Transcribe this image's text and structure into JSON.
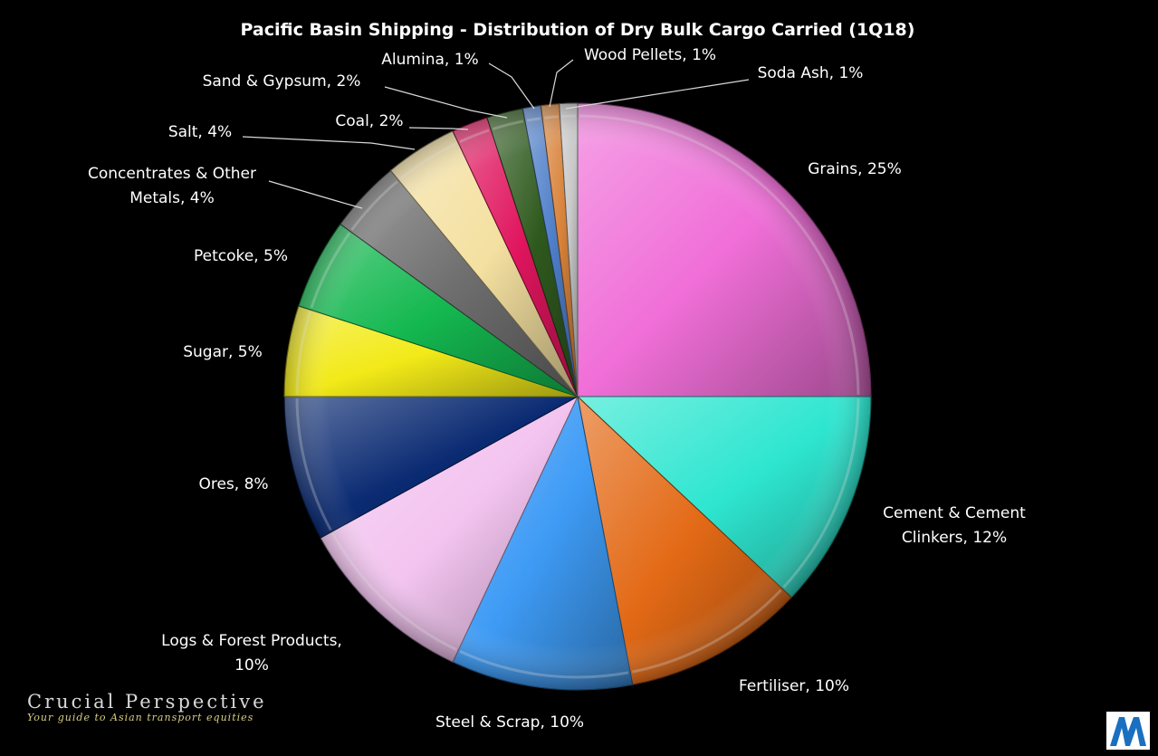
{
  "chart_data": {
    "type": "pie",
    "title": "Pacific Basin Shipping - Distribution of Dry Bulk Cargo Carried (1Q18)",
    "slices": [
      {
        "label": "Grains, 25%",
        "value": 25,
        "color": "#f06fd8"
      },
      {
        "label": "Cement & Cement Clinkers, 12%",
        "value": 12,
        "color": "#2ee6d0"
      },
      {
        "label": "Fertiliser, 10%",
        "value": 10,
        "color": "#e36a16"
      },
      {
        "label": "Steel & Scrap, 10%",
        "value": 10,
        "color": "#3e9bf5"
      },
      {
        "label": "Logs & Forest Products, 10%",
        "value": 10,
        "color": "#f3c4f0"
      },
      {
        "label": "Ores, 8%",
        "value": 8,
        "color": "#0a2a72"
      },
      {
        "label": "Sugar, 5%",
        "value": 5,
        "color": "#f2ea18"
      },
      {
        "label": "Petcoke, 5%",
        "value": 5,
        "color": "#14b850"
      },
      {
        "label": "Concentrates & Other Metals, 4%",
        "value": 4,
        "color": "#6e6e6e"
      },
      {
        "label": "Salt, 4%",
        "value": 4,
        "color": "#f4e0a0"
      },
      {
        "label": "Coal, 2%",
        "value": 2,
        "color": "#e0155e"
      },
      {
        "label": "Sand & Gypsum, 2%",
        "value": 2,
        "color": "#2f5a1e"
      },
      {
        "label": "Alumina, 1%",
        "value": 1,
        "color": "#4f7fc9"
      },
      {
        "label": "Wood Pellets, 1%",
        "value": 1,
        "color": "#d8823a"
      },
      {
        "label": "Soda Ash, 1%",
        "value": 1,
        "color": "#c9c9c9"
      }
    ]
  },
  "label_lines": {
    "grains": [
      "Grains, 25%"
    ],
    "cement": [
      "Cement & Cement",
      "Clinkers, 12%"
    ],
    "fertiliser": [
      "Fertiliser, 10%"
    ],
    "steel": [
      "Steel & Scrap, 10%"
    ],
    "logs": [
      "Logs & Forest Products,",
      "10%"
    ],
    "ores": [
      "Ores, 8%"
    ],
    "sugar": [
      "Sugar, 5%"
    ],
    "petcoke": [
      "Petcoke, 5%"
    ],
    "concentrates": [
      "Concentrates & Other",
      "Metals, 4%"
    ],
    "salt": [
      "Salt, 4%"
    ],
    "coal": [
      "Coal, 2%"
    ],
    "sand": [
      "Sand & Gypsum, 2%"
    ],
    "alumina": [
      "Alumina, 1%"
    ],
    "wood": [
      "Wood Pellets, 1%"
    ],
    "soda": [
      "Soda Ash, 1%"
    ]
  },
  "branding": {
    "name": "Crucial Perspective",
    "tagline": "Your guide to Asian transport equities",
    "logo_letter": "M"
  }
}
